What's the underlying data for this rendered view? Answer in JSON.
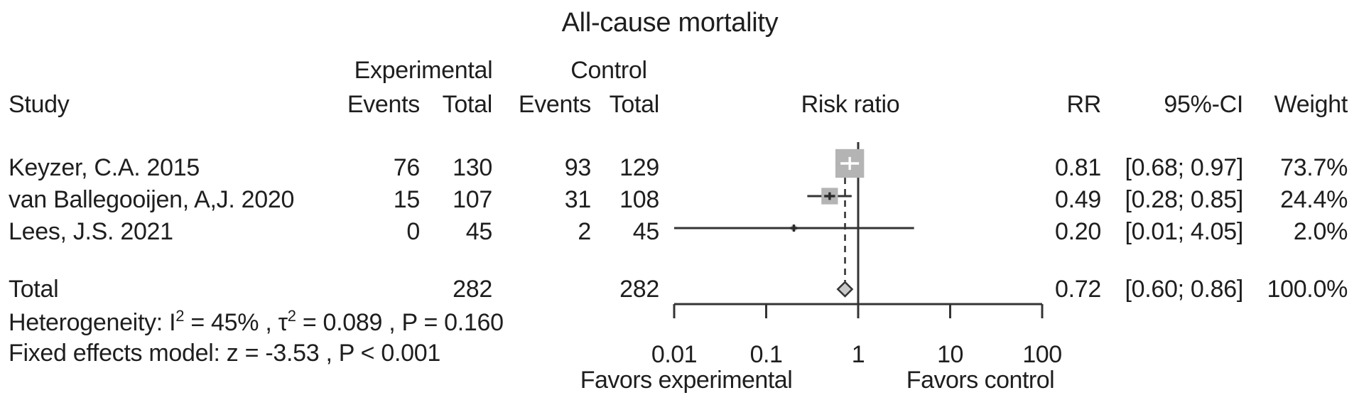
{
  "title": "All-cause mortality",
  "header": {
    "study": "Study",
    "experimental": "Experimental",
    "control": "Control",
    "events": "Events",
    "total": "Total",
    "risk_ratio": "Risk ratio",
    "rr": "RR",
    "ci": "95%-CI",
    "weight": "Weight"
  },
  "studies": [
    {
      "name": "Keyzer, C.A. 2015",
      "exp_events": "76",
      "exp_total": "130",
      "ctrl_events": "93",
      "ctrl_total": "129",
      "rr": "0.81",
      "ci": "[0.68; 0.97]",
      "weight": "73.7%"
    },
    {
      "name": "van Ballegooijen, A,J. 2020",
      "exp_events": "15",
      "exp_total": "107",
      "ctrl_events": "31",
      "ctrl_total": "108",
      "rr": "0.49",
      "ci": "[0.28; 0.85]",
      "weight": "24.4%"
    },
    {
      "name": "Lees, J.S. 2021",
      "exp_events": "0",
      "exp_total": "45",
      "ctrl_events": "2",
      "ctrl_total": "45",
      "rr": "0.20",
      "ci": "[0.01; 4.05]",
      "weight": "2.0%"
    }
  ],
  "total_row": {
    "label": "Total",
    "exp_total": "282",
    "ctrl_total": "282",
    "rr": "0.72",
    "ci": "[0.60; 0.86]",
    "weight": "100.0%"
  },
  "stats": {
    "het_prefix": "Heterogeneity:  I",
    "het_sup1": "2",
    "het_mid": " = 45% , τ",
    "het_sup2": "2",
    "het_suffix": " = 0.089 , P = 0.160",
    "model_line": "Fixed effects model: z = -3.53 , P < 0.001"
  },
  "axis": {
    "tick_labels": [
      "0.01",
      "0.1",
      "1",
      "10",
      "100"
    ],
    "favors_left": "Favors experimental",
    "favors_right": "Favors control"
  },
  "colors": {
    "square": "#b4b4b4",
    "diamond_fill": "#c9c9c9",
    "line": "#343434",
    "text": "#1e1e1e",
    "white_marker": "#ffffff",
    "dark_marker": "#2a2a2a"
  },
  "chart_data": {
    "type": "forest",
    "title": "All-cause mortality",
    "effect_measure": "Risk ratio (RR)",
    "x_scale": "log10",
    "x_ticks": [
      0.01,
      0.1,
      1,
      10,
      100
    ],
    "xlim": [
      0.01,
      100
    ],
    "ref_line": 1,
    "pooled_line": 0.72,
    "xlabel_left": "Favors experimental",
    "xlabel_right": "Favors control",
    "studies": [
      {
        "label": "Keyzer, C.A. 2015",
        "exp_events": 76,
        "exp_total": 130,
        "ctrl_events": 93,
        "ctrl_total": 129,
        "rr": 0.81,
        "ci_low": 0.68,
        "ci_high": 0.97,
        "weight_pct": 73.7
      },
      {
        "label": "van Ballegooijen, A,J. 2020",
        "exp_events": 15,
        "exp_total": 107,
        "ctrl_events": 31,
        "ctrl_total": 108,
        "rr": 0.49,
        "ci_low": 0.28,
        "ci_high": 0.85,
        "weight_pct": 24.4
      },
      {
        "label": "Lees, J.S. 2021",
        "exp_events": 0,
        "exp_total": 45,
        "ctrl_events": 2,
        "ctrl_total": 45,
        "rr": 0.2,
        "ci_low": 0.01,
        "ci_high": 4.05,
        "weight_pct": 2.0
      }
    ],
    "pooled": {
      "label": "Total",
      "exp_total": 282,
      "ctrl_total": 282,
      "rr": 0.72,
      "ci_low": 0.6,
      "ci_high": 0.86,
      "weight_pct": 100.0
    },
    "heterogeneity": {
      "I2": "45%",
      "tau2": 0.089,
      "P": 0.16
    },
    "model": {
      "name": "Fixed effects model",
      "z": -3.53,
      "P": "< 0.001"
    }
  }
}
